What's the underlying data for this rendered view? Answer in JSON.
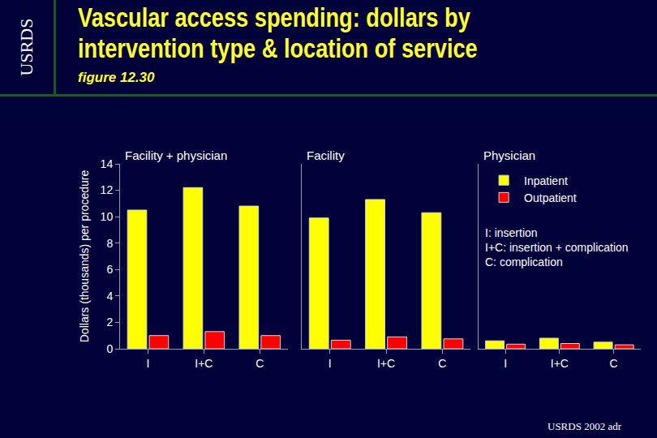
{
  "header": {
    "side_label": "USRDS",
    "title": [
      "Vascular access spending: dollars by",
      "intervention type & location of service"
    ],
    "subtitle": "figure 12.30"
  },
  "footer": "USRDS 2002 adr",
  "chart_data": [
    {
      "type": "bar",
      "title": "Facility + physician",
      "categories": [
        "I",
        "I+C",
        "C"
      ],
      "series": [
        {
          "name": "Inpatient",
          "color": "#ffff00",
          "values": [
            10.5,
            12.2,
            10.8
          ]
        },
        {
          "name": "Outpatient",
          "color": "#ff0000",
          "values": [
            1.0,
            1.3,
            1.0
          ]
        }
      ],
      "ylabel": "Dollars (thousands) per procedure",
      "ylim": [
        0,
        14
      ],
      "yticks": [
        0,
        2,
        4,
        6,
        8,
        10,
        12,
        14
      ]
    },
    {
      "type": "bar",
      "title": "Facility",
      "categories": [
        "I",
        "I+C",
        "C"
      ],
      "series": [
        {
          "name": "Inpatient",
          "color": "#ffff00",
          "values": [
            9.9,
            11.3,
            10.3
          ]
        },
        {
          "name": "Outpatient",
          "color": "#ff0000",
          "values": [
            0.65,
            0.9,
            0.75
          ]
        }
      ],
      "ylim": [
        0,
        14
      ],
      "tick_labels": "x"
    },
    {
      "type": "bar",
      "title": "Physician",
      "categories": [
        "I",
        "I+C",
        "C"
      ],
      "series": [
        {
          "name": "Inpatient",
          "color": "#ffff00",
          "values": [
            0.6,
            0.8,
            0.5
          ]
        },
        {
          "name": "Outpatient",
          "color": "#ff0000",
          "values": [
            0.35,
            0.4,
            0.3
          ]
        }
      ],
      "ylim": [
        0,
        14
      ],
      "tick_labels": "x",
      "legend": "upper left",
      "annotations": [
        "I: insertion",
        "I+C: insertion + complication",
        "C: complication"
      ]
    }
  ]
}
